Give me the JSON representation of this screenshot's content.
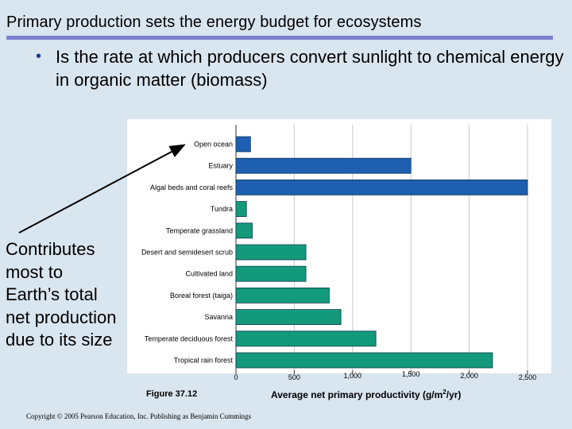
{
  "slide": {
    "title": "Primary production sets the energy budget for ecosystems",
    "bullet_marker": "•",
    "bullet": "Is the rate at which producers convert sunlight to chemical energy in organic matter (biomass)",
    "side_note": "Contributes most to Earth’s total net production due to its size",
    "figure_label": "Figure 37.12",
    "copyright": "Copyright © 2005 Pearson Education, Inc. Publishing as Benjamin Cummings"
  },
  "colors": {
    "ocean_bar": "#1f5fb2",
    "land_bar": "#139a7a",
    "bar_outline": "#0b3a55",
    "plot_bg": "#ffffff",
    "grid": "#c8c8c8",
    "axis": "#333333",
    "arrow": "#000000",
    "title_rule": "#7d7fcf"
  },
  "chart_data": {
    "type": "bar",
    "orientation": "horizontal",
    "title": "",
    "xlabel": "Average net primary productivity (g/m²/yr)",
    "xlabel_parts": {
      "before": "Average net primary productivity (g/m",
      "sup": "2",
      "after": "/yr)"
    },
    "ylabel": "",
    "xlim": [
      0,
      2500
    ],
    "xticks": [
      {
        "value": 0,
        "label": "0"
      },
      {
        "value": 500,
        "label": "500"
      },
      {
        "value": 1000,
        "label": "1,000"
      },
      {
        "value": 1500,
        "label": "1,500"
      },
      {
        "value": 2000,
        "label": "2,000"
      },
      {
        "value": 2500,
        "label": "2,500"
      }
    ],
    "grid": true,
    "categories": [
      "Open ocean",
      "Estuary",
      "Algal beds and coral reefs",
      "Tundra",
      "Temperate grassland",
      "Desert and semidesert scrub",
      "Cultivated land",
      "Boreal forest (taiga)",
      "Savanna",
      "Temperate deciduous forest",
      "Tropical rain forest"
    ],
    "values": [
      125,
      1500,
      2500,
      90,
      140,
      600,
      600,
      800,
      900,
      1200,
      2200
    ],
    "group": [
      "ocean",
      "ocean",
      "ocean",
      "land",
      "land",
      "land",
      "land",
      "land",
      "land",
      "land",
      "land"
    ],
    "annotation": {
      "text": "Contributes most to Earth’s total net production due to its size",
      "points_to": "Open ocean"
    }
  }
}
